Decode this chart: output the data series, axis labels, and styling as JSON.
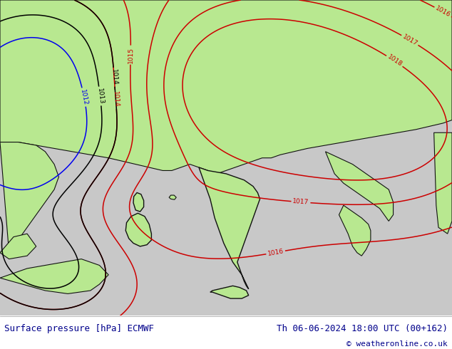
{
  "title_left": "Surface pressure [hPa] ECMWF",
  "title_right": "Th 06-06-2024 18:00 UTC (00+162)",
  "copyright": "© weatheronline.co.uk",
  "land_color": "#b8e890",
  "sea_color": "#c8c8c8",
  "contour_color_red": "#cc0000",
  "contour_color_black": "#000000",
  "contour_color_blue": "#0000ee",
  "footer_text_color": "#00008B",
  "figsize": [
    6.34,
    4.9
  ],
  "dpi": 100,
  "title_fontsize": 9,
  "label_fontsize": 6.5
}
